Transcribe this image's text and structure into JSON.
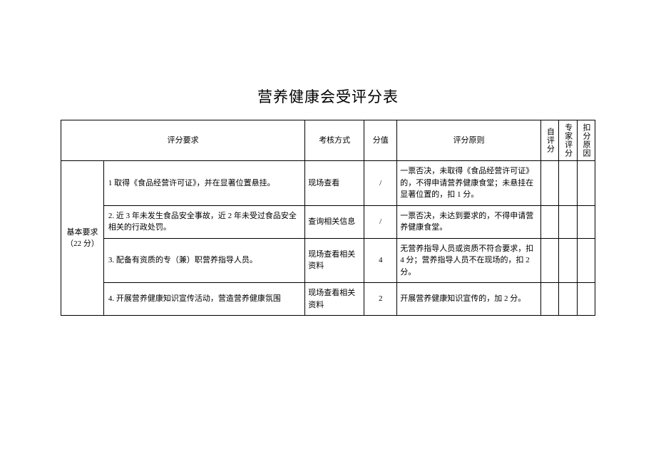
{
  "title": "营养健康会受评分表",
  "headers": {
    "requirement": "评分要求",
    "method": "考核方式",
    "score": "分值",
    "principle": "评分原则",
    "self_score": "自评分",
    "expert_score": "专家评分",
    "deduct_reason": "扣分原因"
  },
  "category": {
    "label": "基本要求（22 分）"
  },
  "rows": [
    {
      "requirement": "1 取得《食品经营许可证》，并在显著位置悬挂。",
      "method": "现场查看",
      "score": "/",
      "principle": "一票否决，未取得《食品经营许可证》的，不得申请营养健康食堂；未悬挂在显著位置的，扣 1 分。"
    },
    {
      "requirement": "2. 近 3 年未发生食品安全事故，近 2 年未受过食品安全相关的行政处罚。",
      "method": "查询相关信息",
      "score": "/",
      "principle": "一票否决，未达到要求的，不得申请营养健康食堂。"
    },
    {
      "requirement": "3. 配备有资质的专（兼）职营养指导人员。",
      "method": "现场查看相关资料",
      "score": "4",
      "principle": "无营养指导人员或资质不符合要求，扣 4 分；营养指导人员不在现场的，扣 2 分。"
    },
    {
      "requirement": "4. 开展营养健康知识宣传活动，营造营养健康氛围",
      "method": "现场查看相关资料",
      "score": "2",
      "principle": "开展营养健康知识宣传的，加 2 分。"
    }
  ]
}
